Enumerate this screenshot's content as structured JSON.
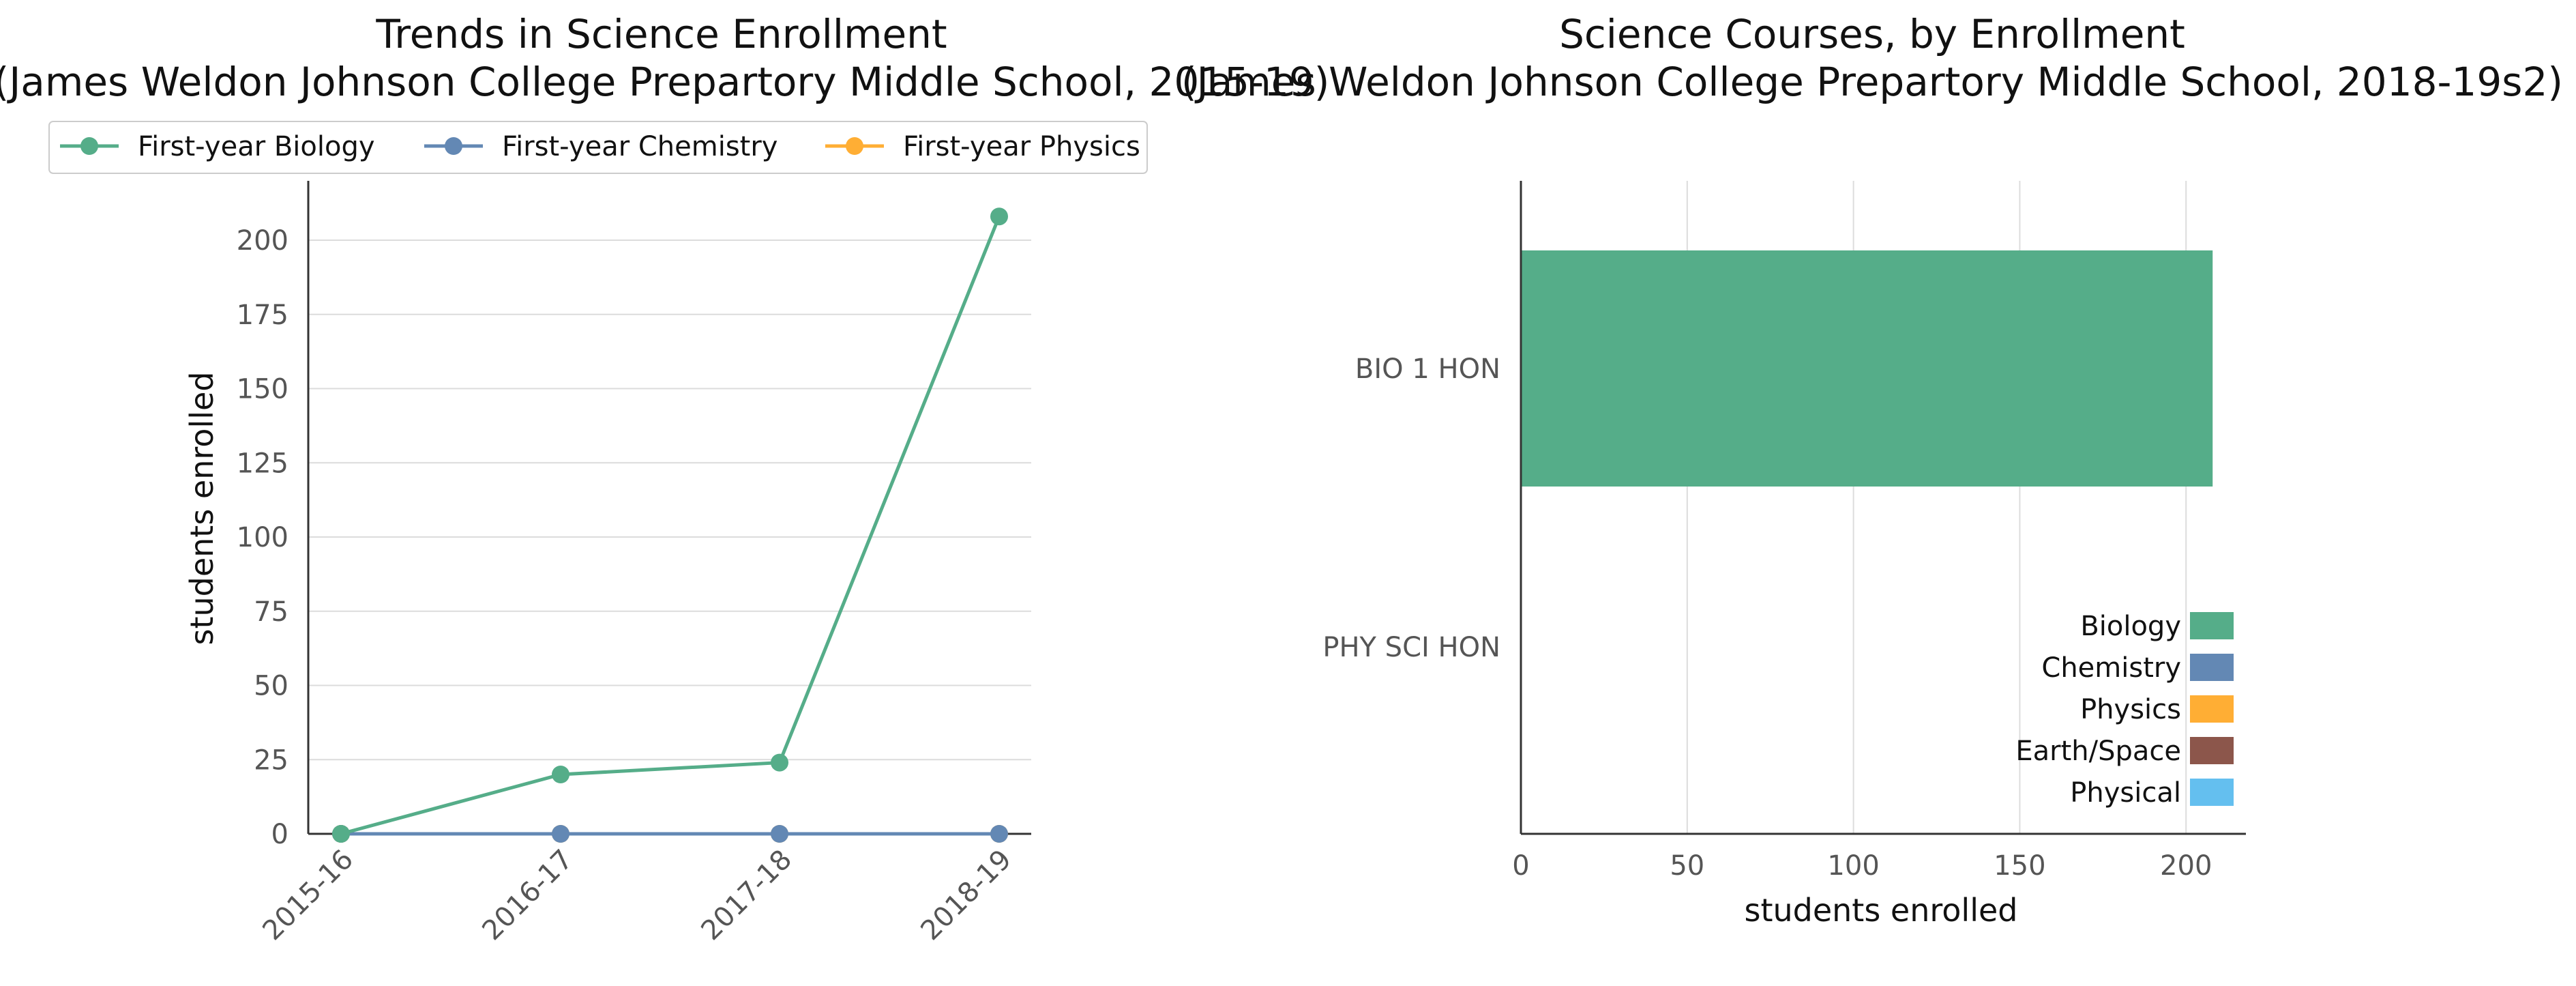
{
  "chart_data": [
    {
      "type": "line",
      "title": "Trends in Science Enrollment",
      "subtitle": "(James Weldon Johnson College Prepartory Middle School, 2015-19)",
      "ylabel": "students enrolled",
      "xlabel": "",
      "categories": [
        "2015-16",
        "2016-17",
        "2017-18",
        "2018-19"
      ],
      "series": [
        {
          "name": "First-year Biology",
          "color": "#55ad89",
          "values": [
            0,
            20,
            24,
            208
          ]
        },
        {
          "name": "First-year Chemistry",
          "color": "#6388b4",
          "values": [
            0,
            0,
            0,
            0
          ]
        },
        {
          "name": "First-year Physics",
          "color": "#ffae34",
          "values": [
            0,
            0,
            0,
            0
          ]
        }
      ],
      "ylim": [
        0,
        220
      ],
      "yticks": [
        0,
        25,
        50,
        75,
        100,
        125,
        150,
        175,
        200
      ],
      "grid": "horizontal",
      "legend": "top-left"
    },
    {
      "type": "bar",
      "orientation": "horizontal",
      "title": "Science Courses, by Enrollment",
      "subtitle": "(James Weldon Johnson College Prepartory Middle School, 2018-19s2)",
      "xlabel": "students enrolled",
      "ylabel": "",
      "categories": [
        "BIO 1 HON",
        "PHY SCI HON"
      ],
      "values": [
        208,
        0
      ],
      "bar_colors": [
        "#55ad89",
        "#55ad89"
      ],
      "xlim": [
        0,
        218
      ],
      "xticks": [
        0,
        50,
        100,
        150,
        200
      ],
      "grid": "vertical",
      "legend": "lower-right",
      "legend_items": [
        {
          "name": "Biology",
          "color": "#55ad89"
        },
        {
          "name": "Chemistry",
          "color": "#6388b4"
        },
        {
          "name": "Physics",
          "color": "#ffae34"
        },
        {
          "name": "Earth/Space",
          "color": "#8c564b"
        },
        {
          "name": "Physical",
          "color": "#64bfef"
        }
      ]
    }
  ]
}
